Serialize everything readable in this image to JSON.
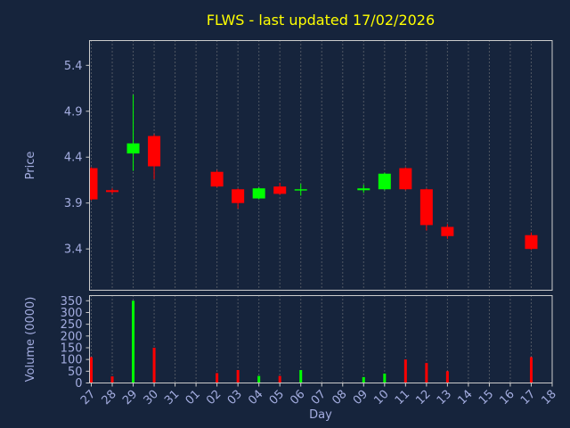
{
  "colors": {
    "background": "#16243c",
    "title": "#ffff00",
    "label": "#a4ade0",
    "grid": "#888888",
    "spine": "#cccccc"
  },
  "chart_data": [
    {
      "type": "candlestick",
      "panel": "price",
      "title": "FLWS - last updated 17/02/2026",
      "xlabel": "Day",
      "ylabel": "Price",
      "categories": [
        "27",
        "28",
        "29",
        "30",
        "31",
        "01",
        "02",
        "03",
        "04",
        "05",
        "06",
        "07",
        "08",
        "09",
        "10",
        "11",
        "12",
        "13",
        "14",
        "15",
        "16",
        "17",
        "18"
      ],
      "y_ticks": [
        5.4,
        4.9,
        4.4,
        3.9,
        3.4
      ],
      "ylim": [
        2.95,
        5.67
      ],
      "grid": "vertical-dotted",
      "legend": "none",
      "up_color": "#00ff00",
      "down_color": "#ff0000",
      "series": [
        {
          "day": "27",
          "open": 4.28,
          "high": 4.29,
          "low": 3.93,
          "close": 3.94
        },
        {
          "day": "28",
          "open": 4.04,
          "high": 4.06,
          "low": 4.0,
          "close": 4.02
        },
        {
          "day": "29",
          "open": 4.44,
          "high": 5.08,
          "low": 4.25,
          "close": 4.55
        },
        {
          "day": "30",
          "open": 4.63,
          "high": 4.65,
          "low": 4.16,
          "close": 4.3
        },
        {
          "day": "02",
          "open": 4.24,
          "high": 4.26,
          "low": 4.07,
          "close": 4.08
        },
        {
          "day": "03",
          "open": 4.05,
          "high": 4.06,
          "low": 3.84,
          "close": 3.9
        },
        {
          "day": "04",
          "open": 3.95,
          "high": 4.07,
          "low": 3.94,
          "close": 4.06
        },
        {
          "day": "05",
          "open": 4.08,
          "high": 4.12,
          "low": 3.99,
          "close": 4.0
        },
        {
          "day": "06",
          "open": 4.04,
          "high": 4.11,
          "low": 3.98,
          "close": 4.05
        },
        {
          "day": "09",
          "open": 4.04,
          "high": 4.1,
          "low": 4.01,
          "close": 4.06
        },
        {
          "day": "10",
          "open": 4.05,
          "high": 4.23,
          "low": 4.04,
          "close": 4.22
        },
        {
          "day": "11",
          "open": 4.28,
          "high": 4.29,
          "low": 4.04,
          "close": 4.05
        },
        {
          "day": "12",
          "open": 4.05,
          "high": 4.06,
          "low": 3.6,
          "close": 3.66
        },
        {
          "day": "13",
          "open": 3.64,
          "high": 3.67,
          "low": 3.51,
          "close": 3.54
        },
        {
          "day": "17",
          "open": 3.55,
          "high": 3.58,
          "low": 3.39,
          "close": 3.4
        }
      ]
    },
    {
      "type": "bar",
      "panel": "volume",
      "ylabel": "Volume (0000)",
      "y_ticks": [
        350,
        300,
        250,
        200,
        150,
        100,
        50,
        0
      ],
      "ylim": [
        0,
        372
      ],
      "values": [
        {
          "day": "27",
          "value": 110,
          "direction": "down"
        },
        {
          "day": "28",
          "value": 28,
          "direction": "down"
        },
        {
          "day": "29",
          "value": 350,
          "direction": "up"
        },
        {
          "day": "30",
          "value": 150,
          "direction": "down"
        },
        {
          "day": "02",
          "value": 42,
          "direction": "down"
        },
        {
          "day": "03",
          "value": 55,
          "direction": "down"
        },
        {
          "day": "04",
          "value": 30,
          "direction": "up"
        },
        {
          "day": "05",
          "value": 30,
          "direction": "down"
        },
        {
          "day": "06",
          "value": 55,
          "direction": "up"
        },
        {
          "day": "09",
          "value": 25,
          "direction": "up"
        },
        {
          "day": "10",
          "value": 40,
          "direction": "up"
        },
        {
          "day": "11",
          "value": 100,
          "direction": "down"
        },
        {
          "day": "12",
          "value": 85,
          "direction": "down"
        },
        {
          "day": "13",
          "value": 50,
          "direction": "down"
        },
        {
          "day": "17",
          "value": 110,
          "direction": "down"
        }
      ]
    }
  ]
}
